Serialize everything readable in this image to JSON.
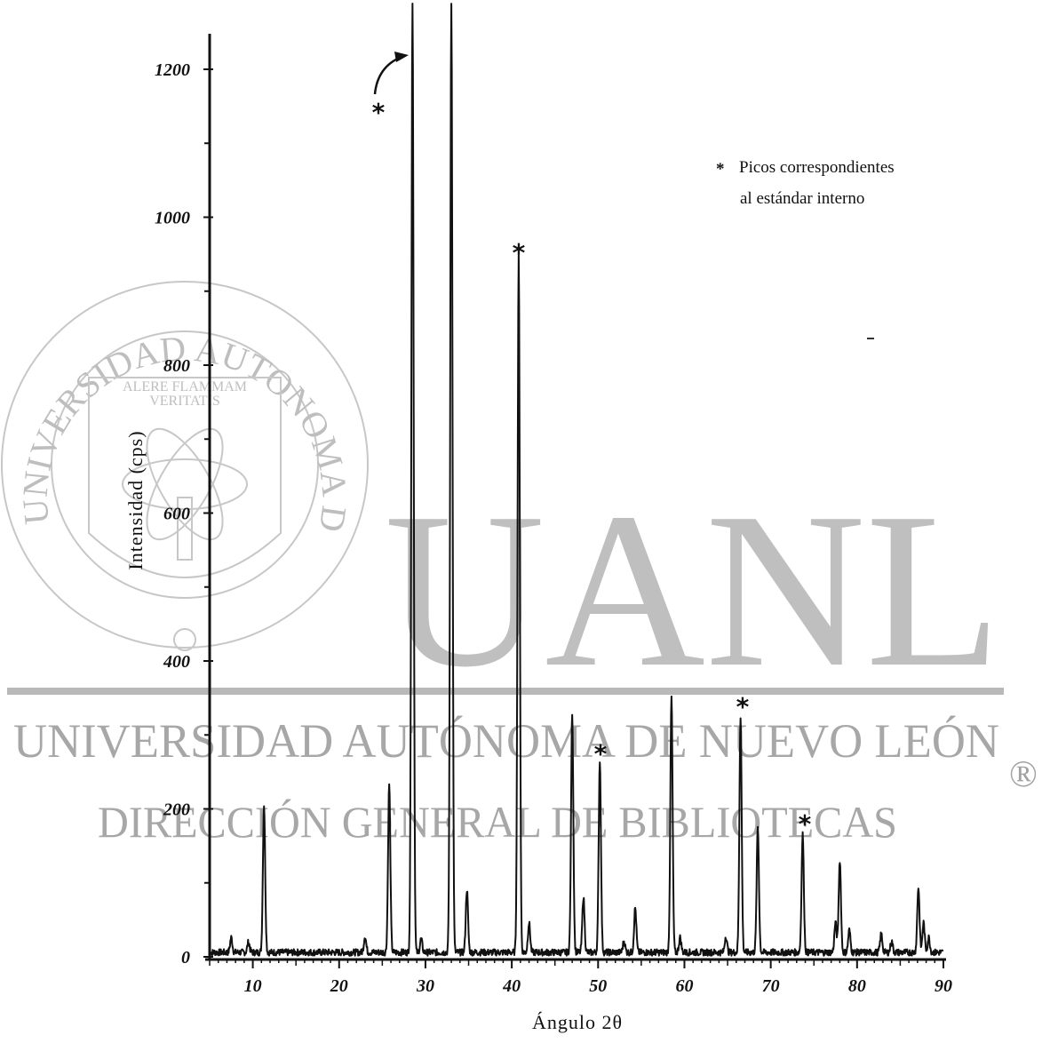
{
  "chart_data": {
    "type": "line",
    "title": "",
    "xlabel": "Ángulo 2θ",
    "ylabel": "Intensidad (cps)",
    "xlim": [
      5,
      90
    ],
    "ylim": [
      0,
      1250
    ],
    "x_ticks": [
      10,
      20,
      30,
      40,
      50,
      60,
      70,
      80,
      90
    ],
    "y_ticks": [
      0,
      200,
      400,
      600,
      800,
      1000,
      1200
    ],
    "grid": false,
    "legend": {
      "placement": "top-right",
      "marker": "*",
      "lines": [
        "Picos correspondientes",
        "al estándar interno"
      ]
    },
    "series": [
      {
        "peaks": [
          {
            "x": 7.5,
            "y": 20
          },
          {
            "x": 9.5,
            "y": 14
          },
          {
            "x": 11.3,
            "y": 200
          },
          {
            "x": 23.0,
            "y": 22
          },
          {
            "x": 25.8,
            "y": 228
          },
          {
            "x": 28.5,
            "y": 1290
          },
          {
            "x": 29.5,
            "y": 18
          },
          {
            "x": 33.0,
            "y": 1285
          },
          {
            "x": 34.8,
            "y": 85
          },
          {
            "x": 40.8,
            "y": 940
          },
          {
            "x": 42.0,
            "y": 40
          },
          {
            "x": 47.0,
            "y": 325
          },
          {
            "x": 48.3,
            "y": 75
          },
          {
            "x": 50.2,
            "y": 260
          },
          {
            "x": 53.0,
            "y": 15
          },
          {
            "x": 54.3,
            "y": 60
          },
          {
            "x": 58.5,
            "y": 345
          },
          {
            "x": 59.5,
            "y": 20
          },
          {
            "x": 64.8,
            "y": 22
          },
          {
            "x": 66.5,
            "y": 320
          },
          {
            "x": 68.5,
            "y": 170
          },
          {
            "x": 73.7,
            "y": 160
          },
          {
            "x": 77.5,
            "y": 40
          },
          {
            "x": 78.0,
            "y": 125
          },
          {
            "x": 79.1,
            "y": 30
          },
          {
            "x": 82.8,
            "y": 25
          },
          {
            "x": 84.0,
            "y": 15
          },
          {
            "x": 87.1,
            "y": 88
          },
          {
            "x": 87.7,
            "y": 40
          },
          {
            "x": 88.3,
            "y": 20
          }
        ],
        "baseline": 6
      }
    ],
    "annotations": [
      {
        "text": "*",
        "x": 28.5,
        "note": "arrow"
      },
      {
        "text": "*",
        "x": 40.8
      },
      {
        "text": "*",
        "x": 50.2
      },
      {
        "text": "*",
        "x": 66.5
      },
      {
        "text": "*",
        "x": 73.7
      }
    ]
  },
  "watermark": {
    "big": "UANL",
    "line1": "UNIVERSIDAD AUTÓNOMA DE NUEVO LEÓN",
    "line2": "DIRECCIÓN GENERAL DE BIBLIOTECAS",
    "registered": "®",
    "seal_ring": "UNIVERSIDAD AUTONOMA DE NUEVO LEON",
    "seal_motto_1": "ALERE FLAMMAM",
    "seal_motto_2": "VERITATIS"
  }
}
